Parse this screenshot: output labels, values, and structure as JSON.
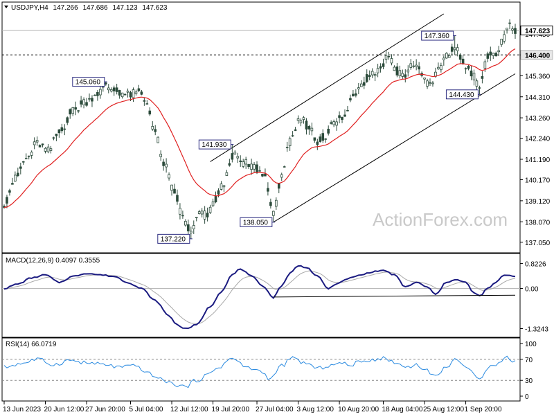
{
  "chart_data": {
    "type": "candlestick",
    "symbol_header": "USDJPY,H4",
    "ohlc": [
      "147.266",
      "147.686",
      "147.123",
      "147.623"
    ],
    "last_price": "147.623",
    "watermark": "ActionForex.com",
    "colors": {
      "candle": "#2b4a3a",
      "ma": "#e02020",
      "macd": "#1a1a80",
      "signal": "#a8a8a8",
      "rsi": "#2a8ae0",
      "grid": "#888888",
      "tag_border": "#2b2b80"
    },
    "price_axis": {
      "ylim": [
        136.8,
        148.45
      ],
      "ticks": [
        "147.450",
        "146.400",
        "145.360",
        "144.310",
        "143.260",
        "142.240",
        "141.190",
        "140.170",
        "139.120",
        "138.070",
        "137.050"
      ]
    },
    "horizontal_line_price": "146.400",
    "annotations": [
      {
        "label": "145.060",
        "i": 37,
        "price": 145.06
      },
      {
        "label": "137.220",
        "i": 68,
        "price": 137.22
      },
      {
        "label": "141.930",
        "i": 83,
        "price": 141.93
      },
      {
        "label": "138.050",
        "i": 98,
        "price": 138.05
      },
      {
        "label": "147.360",
        "i": 164,
        "price": 147.36
      },
      {
        "label": "144.430",
        "i": 173,
        "price": 144.43
      }
    ],
    "channel": {
      "upper": [
        {
          "i": 75,
          "price": 141.07
        },
        {
          "i": 160,
          "price": 148.45
        }
      ],
      "lower": [
        {
          "i": 98,
          "price": 138.05
        },
        {
          "i": 186,
          "price": 145.46
        }
      ]
    },
    "anchors": [
      {
        "i": 0,
        "price": 139.0
      },
      {
        "i": 4,
        "price": 140.2
      },
      {
        "i": 8,
        "price": 141.2
      },
      {
        "i": 12,
        "price": 142.0
      },
      {
        "i": 16,
        "price": 141.6
      },
      {
        "i": 20,
        "price": 142.5
      },
      {
        "i": 25,
        "price": 143.6
      },
      {
        "i": 30,
        "price": 144.1
      },
      {
        "i": 34,
        "price": 144.5
      },
      {
        "i": 37,
        "price": 144.8
      },
      {
        "i": 41,
        "price": 144.6
      },
      {
        "i": 45,
        "price": 144.4
      },
      {
        "i": 49,
        "price": 144.5
      },
      {
        "i": 52,
        "price": 144.0
      },
      {
        "i": 55,
        "price": 142.5
      },
      {
        "i": 58,
        "price": 141.0
      },
      {
        "i": 62,
        "price": 139.5
      },
      {
        "i": 65,
        "price": 138.3
      },
      {
        "i": 68,
        "price": 137.5
      },
      {
        "i": 71,
        "price": 138.5
      },
      {
        "i": 74,
        "price": 138.4
      },
      {
        "i": 77,
        "price": 139.2
      },
      {
        "i": 80,
        "price": 140.0
      },
      {
        "i": 83,
        "price": 141.4
      },
      {
        "i": 87,
        "price": 141.0
      },
      {
        "i": 91,
        "price": 140.8
      },
      {
        "i": 95,
        "price": 140.3
      },
      {
        "i": 98,
        "price": 138.4
      },
      {
        "i": 101,
        "price": 140.5
      },
      {
        "i": 104,
        "price": 142.0
      },
      {
        "i": 108,
        "price": 143.2
      },
      {
        "i": 111,
        "price": 142.8
      },
      {
        "i": 114,
        "price": 142.0
      },
      {
        "i": 117,
        "price": 142.4
      },
      {
        "i": 120,
        "price": 143.0
      },
      {
        "i": 124,
        "price": 143.3
      },
      {
        "i": 127,
        "price": 144.4
      },
      {
        "i": 130,
        "price": 145.0
      },
      {
        "i": 134,
        "price": 145.5
      },
      {
        "i": 137,
        "price": 145.8
      },
      {
        "i": 140,
        "price": 146.4
      },
      {
        "i": 143,
        "price": 145.6
      },
      {
        "i": 146,
        "price": 145.4
      },
      {
        "i": 149,
        "price": 146.0
      },
      {
        "i": 152,
        "price": 145.5
      },
      {
        "i": 155,
        "price": 144.8
      },
      {
        "i": 158,
        "price": 145.7
      },
      {
        "i": 161,
        "price": 146.3
      },
      {
        "i": 164,
        "price": 146.8
      },
      {
        "i": 167,
        "price": 146.0
      },
      {
        "i": 170,
        "price": 145.5
      },
      {
        "i": 173,
        "price": 144.8
      },
      {
        "i": 176,
        "price": 146.3
      },
      {
        "i": 179,
        "price": 146.5
      },
      {
        "i": 182,
        "price": 147.2
      },
      {
        "i": 184,
        "price": 147.9
      },
      {
        "i": 186,
        "price": 147.6
      }
    ],
    "macd": {
      "label": "MACD(12,26,9) 0.4097 0.3555",
      "ylim": [
        -1.45,
        0.95
      ],
      "ticks": [
        "0.8226",
        "0.00",
        "-1.3243"
      ],
      "support_line": [
        {
          "i": 98,
          "value": -0.28
        },
        {
          "i": 186,
          "value": -0.22
        }
      ],
      "anchors": [
        {
          "i": 0,
          "value": 0.0
        },
        {
          "i": 5,
          "value": 0.15
        },
        {
          "i": 10,
          "value": 0.35
        },
        {
          "i": 15,
          "value": 0.45
        },
        {
          "i": 20,
          "value": 0.2
        },
        {
          "i": 25,
          "value": 0.4
        },
        {
          "i": 30,
          "value": 0.5
        },
        {
          "i": 35,
          "value": 0.45
        },
        {
          "i": 40,
          "value": 0.4
        },
        {
          "i": 45,
          "value": 0.2
        },
        {
          "i": 50,
          "value": 0.0
        },
        {
          "i": 55,
          "value": -0.4
        },
        {
          "i": 60,
          "value": -0.9
        },
        {
          "i": 63,
          "value": -1.2
        },
        {
          "i": 66,
          "value": -1.33
        },
        {
          "i": 70,
          "value": -1.2
        },
        {
          "i": 75,
          "value": -0.6
        },
        {
          "i": 79,
          "value": -0.1
        },
        {
          "i": 83,
          "value": 0.45
        },
        {
          "i": 86,
          "value": 0.65
        },
        {
          "i": 90,
          "value": 0.4
        },
        {
          "i": 94,
          "value": 0.1
        },
        {
          "i": 98,
          "value": -0.3
        },
        {
          "i": 101,
          "value": 0.1
        },
        {
          "i": 104,
          "value": 0.5
        },
        {
          "i": 107,
          "value": 0.75
        },
        {
          "i": 110,
          "value": 0.7
        },
        {
          "i": 114,
          "value": 0.4
        },
        {
          "i": 118,
          "value": 0.0
        },
        {
          "i": 122,
          "value": 0.2
        },
        {
          "i": 126,
          "value": 0.35
        },
        {
          "i": 130,
          "value": 0.45
        },
        {
          "i": 134,
          "value": 0.55
        },
        {
          "i": 138,
          "value": 0.6
        },
        {
          "i": 142,
          "value": 0.45
        },
        {
          "i": 146,
          "value": 0.05
        },
        {
          "i": 150,
          "value": 0.2
        },
        {
          "i": 154,
          "value": 0.05
        },
        {
          "i": 157,
          "value": -0.2
        },
        {
          "i": 161,
          "value": 0.2
        },
        {
          "i": 164,
          "value": 0.3
        },
        {
          "i": 168,
          "value": 0.2
        },
        {
          "i": 171,
          "value": -0.15
        },
        {
          "i": 173,
          "value": -0.25
        },
        {
          "i": 176,
          "value": 0.0
        },
        {
          "i": 179,
          "value": 0.2
        },
        {
          "i": 182,
          "value": 0.45
        },
        {
          "i": 186,
          "value": 0.41
        }
      ]
    },
    "rsi": {
      "label": "RSI(14) 66.0719",
      "ylim": [
        0,
        100
      ],
      "ticks": [
        "100",
        "70",
        "30",
        "0"
      ],
      "dashed_levels": [
        70,
        30
      ],
      "anchors": [
        {
          "i": 0,
          "value": 55
        },
        {
          "i": 6,
          "value": 62
        },
        {
          "i": 12,
          "value": 70
        },
        {
          "i": 18,
          "value": 60
        },
        {
          "i": 24,
          "value": 68
        },
        {
          "i": 30,
          "value": 63
        },
        {
          "i": 36,
          "value": 60
        },
        {
          "i": 42,
          "value": 55
        },
        {
          "i": 48,
          "value": 57
        },
        {
          "i": 53,
          "value": 42
        },
        {
          "i": 58,
          "value": 30
        },
        {
          "i": 62,
          "value": 22
        },
        {
          "i": 66,
          "value": 18
        },
        {
          "i": 70,
          "value": 30
        },
        {
          "i": 74,
          "value": 40
        },
        {
          "i": 78,
          "value": 55
        },
        {
          "i": 83,
          "value": 72
        },
        {
          "i": 88,
          "value": 55
        },
        {
          "i": 93,
          "value": 48
        },
        {
          "i": 97,
          "value": 33
        },
        {
          "i": 101,
          "value": 58
        },
        {
          "i": 105,
          "value": 72
        },
        {
          "i": 110,
          "value": 62
        },
        {
          "i": 114,
          "value": 52
        },
        {
          "i": 118,
          "value": 58
        },
        {
          "i": 122,
          "value": 62
        },
        {
          "i": 126,
          "value": 60
        },
        {
          "i": 130,
          "value": 65
        },
        {
          "i": 134,
          "value": 70
        },
        {
          "i": 138,
          "value": 72
        },
        {
          "i": 142,
          "value": 65
        },
        {
          "i": 146,
          "value": 55
        },
        {
          "i": 150,
          "value": 60
        },
        {
          "i": 154,
          "value": 48
        },
        {
          "i": 157,
          "value": 38
        },
        {
          "i": 161,
          "value": 55
        },
        {
          "i": 164,
          "value": 72
        },
        {
          "i": 168,
          "value": 52
        },
        {
          "i": 171,
          "value": 45
        },
        {
          "i": 173,
          "value": 33
        },
        {
          "i": 176,
          "value": 55
        },
        {
          "i": 180,
          "value": 62
        },
        {
          "i": 183,
          "value": 74
        },
        {
          "i": 186,
          "value": 66
        }
      ]
    },
    "x_axis": {
      "count": 187,
      "ticks": [
        {
          "i": 0,
          "label": "13 Jun 2023"
        },
        {
          "i": 15,
          "label": "20 Jun 12:00"
        },
        {
          "i": 30,
          "label": "27 Jun 20:00"
        },
        {
          "i": 46,
          "label": "5 Jul 04:00"
        },
        {
          "i": 61,
          "label": "12 Jul 12:00"
        },
        {
          "i": 76,
          "label": "19 Jul 20:00"
        },
        {
          "i": 92,
          "label": "27 Jul 04:00"
        },
        {
          "i": 107,
          "label": "3 Aug 12:00"
        },
        {
          "i": 122,
          "label": "10 Aug 20:00"
        },
        {
          "i": 138,
          "label": "18 Aug 04:00"
        },
        {
          "i": 153,
          "label": "25 Aug 12:00"
        },
        {
          "i": 168,
          "label": "1 Sep 20:00"
        }
      ]
    }
  }
}
